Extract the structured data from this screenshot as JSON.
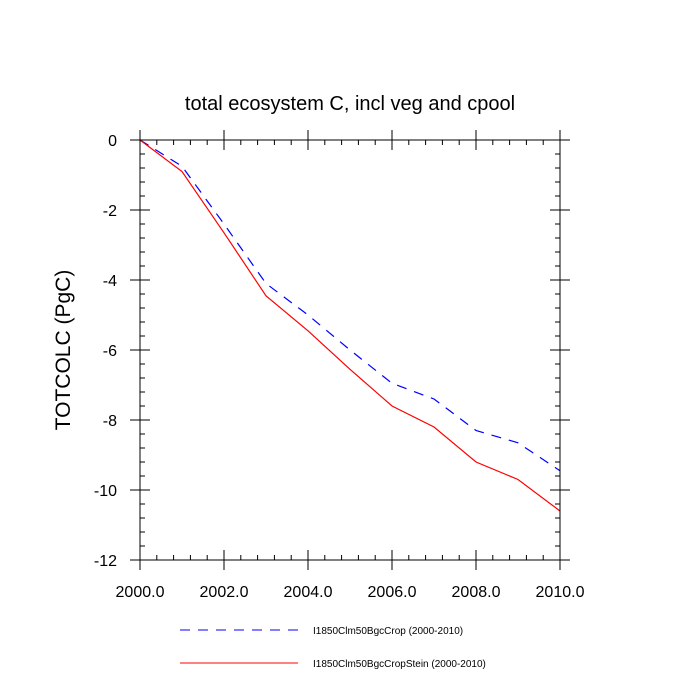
{
  "chart_data": {
    "type": "line",
    "title": "total ecosystem C, incl veg and cpool",
    "ylabel": "TOTCOLC  (PgC)",
    "xlabel": "",
    "xlim": [
      2000,
      2010
    ],
    "ylim": [
      -12,
      0
    ],
    "xticks": [
      2000,
      2002,
      2004,
      2006,
      2008,
      2010
    ],
    "xtick_labels": [
      "2000.0",
      "2002.0",
      "2004.0",
      "2006.0",
      "2008.0",
      "2010.0"
    ],
    "yticks": [
      0,
      -2,
      -4,
      -6,
      -8,
      -10,
      -12
    ],
    "ytick_labels": [
      "0",
      "-2",
      "-4",
      "-6",
      "-8",
      "-10",
      "-12"
    ],
    "grid": false,
    "legend_position": "bottom",
    "x": [
      2000,
      2001,
      2002,
      2003,
      2004,
      2005,
      2006,
      2007,
      2008,
      2009,
      2010
    ],
    "series": [
      {
        "name": "I1850Clm50BgcCrop (2000-2010)",
        "color": "#0000ff",
        "dash": "dashed",
        "values": [
          0,
          -0.75,
          -2.4,
          -4.1,
          -5.0,
          -6.0,
          -6.95,
          -7.4,
          -8.3,
          -8.65,
          -9.45
        ]
      },
      {
        "name": "I1850Clm50BgcCropStein (2000-2010)",
        "color": "#ff0000",
        "dash": "solid",
        "values": [
          0,
          -0.9,
          -2.65,
          -4.45,
          -5.45,
          -6.55,
          -7.6,
          -8.2,
          -9.2,
          -9.7,
          -10.6
        ]
      }
    ]
  }
}
